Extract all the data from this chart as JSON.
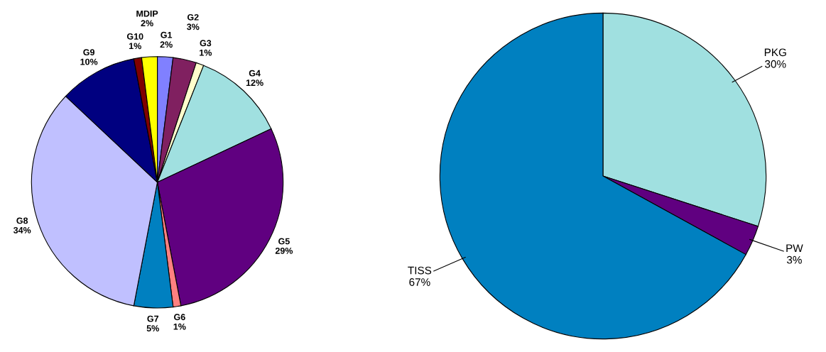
{
  "chart_data": [
    {
      "type": "pie",
      "categories": [
        "G1",
        "G2",
        "G3",
        "G4",
        "G5",
        "G6",
        "G7",
        "G8",
        "G9",
        "G10",
        "MDIP"
      ],
      "values": [
        2,
        3,
        1,
        12,
        29,
        1,
        5,
        34,
        10,
        1,
        2
      ],
      "value_labels": [
        "2%",
        "3%",
        "1%",
        "12%",
        "29%",
        "1%",
        "5%",
        "34%",
        "10%",
        "1%",
        "2%"
      ],
      "colors": [
        "#8080ff",
        "#802060",
        "#ffffcc",
        "#a0e0e0",
        "#600080",
        "#ff8080",
        "#0080c0",
        "#c0c0ff",
        "#000080",
        "#800000",
        "#ffff00"
      ]
    },
    {
      "type": "pie",
      "categories": [
        "PKG",
        "PW",
        "TISS"
      ],
      "values": [
        30,
        3,
        67
      ],
      "value_labels": [
        "30%",
        "3%",
        "67%"
      ],
      "colors": [
        "#a0e0e0",
        "#600080",
        "#0080c0"
      ]
    }
  ]
}
